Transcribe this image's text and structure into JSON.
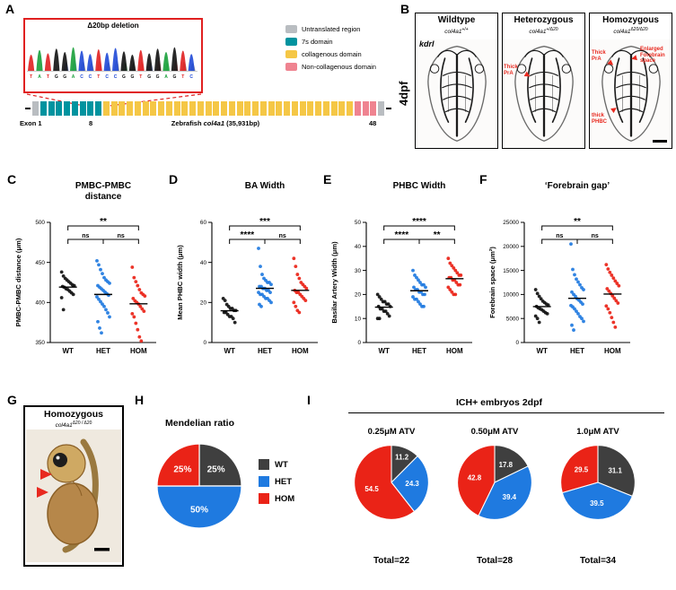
{
  "panel_labels": {
    "A": "A",
    "B": "B",
    "C": "C",
    "D": "D",
    "E": "E",
    "F": "F",
    "G": "G",
    "H": "H",
    "I": "I"
  },
  "icons": {
    "tri_right": "▶",
    "tri_left": "◀"
  },
  "panelA": {
    "deletion_label": "Δ20bp deletion",
    "sequence": "TATGGACCTCCGGTGGAGTC",
    "base_colors": {
      "A": "#18a03a",
      "C": "#1f49d7",
      "G": "#111111",
      "T": "#e02020"
    },
    "legend": [
      {
        "label": "Untranslated region",
        "color": "#b9bdc1"
      },
      {
        "label": "7s domain",
        "color": "#00939f"
      },
      {
        "label": "collagenous domain",
        "color": "#f5c746"
      },
      {
        "label": "Non-collagenous domain",
        "color": "#ef8390"
      }
    ],
    "exons": {
      "segments": [
        {
          "color": "#b9bdc1",
          "count": 1
        },
        {
          "color": "#00939f",
          "count": 8
        },
        {
          "color": "#f5c746",
          "count": 32
        },
        {
          "color": "#ef8390",
          "count": 3
        },
        {
          "color": "#b9bdc1",
          "count": 1
        }
      ],
      "label_exon1": "Exon 1",
      "label_8": "8",
      "label_48": "48",
      "caption_prefix": "Zebrafish ",
      "gene": "col4a1",
      "caption_suffix": " (35,931bp)"
    }
  },
  "panelB": {
    "dpf_label": "4dpf",
    "reporter": "kdrl",
    "panels": [
      {
        "title": "Wildtype",
        "gene": "col4a1",
        "sup": "+/+",
        "annotations": []
      },
      {
        "title": "Heterozygous",
        "gene": "col4a1",
        "sup": "+/Δ20",
        "annotations": [
          {
            "text": "Thick PrA"
          }
        ]
      },
      {
        "title": "Homozygous",
        "gene": "col4a1",
        "sup": "Δ20/Δ20",
        "annotations": [
          {
            "text": "Thick PrA"
          },
          {
            "text": "Enlarged Forebrain space"
          },
          {
            "text": "thick PHBC"
          }
        ]
      }
    ]
  },
  "panelG": {
    "title": "Homozygous",
    "gene": "col4a1",
    "sup": "Δ20 / Δ20"
  },
  "panelI": {
    "header": "ICH+ embryos 2dpf"
  },
  "chart_data": [
    {
      "id": "C",
      "type": "scatter",
      "title": "PMBC-PMBC distance",
      "title_lines": [
        "PMBC-PMBC",
        "distance"
      ],
      "ylabel": "PMBC-PMBC distance (μm)",
      "ylim": [
        350,
        500
      ],
      "yticks": [
        350,
        400,
        450,
        500
      ],
      "categories": [
        "WT",
        "HET",
        "HOM"
      ],
      "series": [
        {
          "name": "WT",
          "color": "#111111",
          "values": [
            438,
            433,
            430,
            428,
            426,
            424,
            422,
            421,
            420,
            419,
            417,
            416,
            414,
            412,
            410,
            406,
            391
          ]
        },
        {
          "name": "HET",
          "color": "#1f7ae0",
          "values": [
            452,
            447,
            441,
            436,
            431,
            428,
            426,
            424,
            421,
            419,
            417,
            415,
            413,
            411,
            409,
            407,
            404,
            401,
            398,
            395,
            391,
            387,
            382,
            376,
            368,
            362
          ]
        },
        {
          "name": "HOM",
          "color": "#ea2317",
          "values": [
            444,
            431,
            426,
            421,
            416,
            412,
            410,
            408,
            405,
            402,
            400,
            398,
            395,
            392,
            389,
            386,
            382,
            374,
            366,
            357,
            352
          ]
        }
      ],
      "significance": [
        {
          "a": 0,
          "b": 1,
          "label": "ns",
          "level": 0
        },
        {
          "a": 1,
          "b": 2,
          "label": "ns",
          "level": 0
        },
        {
          "a": 0,
          "b": 2,
          "label": "**",
          "level": 1
        }
      ]
    },
    {
      "id": "D",
      "type": "scatter",
      "title": "BA Width",
      "title_lines": [
        "BA Width"
      ],
      "ylabel": "Mean PHBC width (μm)",
      "ylim": [
        0,
        60
      ],
      "yticks": [
        0,
        20,
        40,
        60
      ],
      "categories": [
        "WT",
        "HET",
        "HOM"
      ],
      "series": [
        {
          "name": "WT",
          "color": "#111111",
          "values": [
            22,
            21,
            19,
            18,
            17,
            17,
            16,
            16,
            15,
            15,
            14,
            13,
            13,
            12,
            10
          ]
        },
        {
          "name": "HET",
          "color": "#1f7ae0",
          "values": [
            47,
            38,
            34,
            32,
            31,
            30,
            30,
            29,
            28,
            28,
            27,
            27,
            26,
            26,
            25,
            25,
            24,
            24,
            23,
            22,
            22,
            21,
            20,
            19,
            18
          ]
        },
        {
          "name": "HOM",
          "color": "#ea2317",
          "values": [
            42,
            38,
            34,
            32,
            30,
            29,
            28,
            27,
            26,
            25,
            25,
            24,
            23,
            22,
            21,
            20,
            18,
            16,
            15
          ]
        }
      ],
      "significance": [
        {
          "a": 0,
          "b": 1,
          "label": "****",
          "level": 0
        },
        {
          "a": 1,
          "b": 2,
          "label": "ns",
          "level": 0
        },
        {
          "a": 0,
          "b": 2,
          "label": "***",
          "level": 1
        }
      ]
    },
    {
      "id": "E",
      "type": "scatter",
      "title": "PHBC Width",
      "title_lines": [
        "PHBC Width"
      ],
      "ylabel": "Basilar Artery Width (μm)",
      "ylim": [
        0,
        50
      ],
      "yticks": [
        0,
        10,
        20,
        30,
        40,
        50
      ],
      "categories": [
        "WT",
        "HET",
        "HOM"
      ],
      "series": [
        {
          "name": "WT",
          "color": "#111111",
          "values": [
            20,
            19,
            18,
            17,
            17,
            16,
            16,
            15,
            15,
            14,
            14,
            13,
            13,
            12,
            11,
            10,
            10
          ]
        },
        {
          "name": "HET",
          "color": "#1f7ae0",
          "values": [
            30,
            28,
            27,
            26,
            25,
            24,
            24,
            23,
            23,
            22,
            22,
            21,
            21,
            20,
            20,
            19,
            18,
            18,
            17,
            16,
            15,
            15
          ]
        },
        {
          "name": "HOM",
          "color": "#ea2317",
          "values": [
            35,
            33,
            32,
            31,
            30,
            29,
            28,
            28,
            27,
            27,
            26,
            26,
            25,
            24,
            24,
            23,
            22,
            21,
            20,
            20
          ]
        }
      ],
      "significance": [
        {
          "a": 0,
          "b": 1,
          "label": "****",
          "level": 0
        },
        {
          "a": 1,
          "b": 2,
          "label": "**",
          "level": 0
        },
        {
          "a": 0,
          "b": 2,
          "label": "****",
          "level": 1
        }
      ]
    },
    {
      "id": "F",
      "type": "scatter",
      "title": "‘Forebrain gap’",
      "title_lines": [
        "‘Forebrain gap’"
      ],
      "ylabel": "Forebrain space (μm²)",
      "ylim": [
        0,
        25000
      ],
      "yticks": [
        0,
        5000,
        10000,
        15000,
        20000,
        25000
      ],
      "categories": [
        "WT",
        "HET",
        "HOM"
      ],
      "series": [
        {
          "name": "WT",
          "color": "#111111",
          "values": [
            11000,
            10200,
            9600,
            9100,
            8600,
            8300,
            8000,
            7800,
            7500,
            7200,
            7000,
            6800,
            6500,
            6200,
            6000,
            5500,
            5000,
            4200
          ]
        },
        {
          "name": "HET",
          "color": "#1f7ae0",
          "values": [
            20500,
            15200,
            14100,
            13200,
            12600,
            12000,
            11400,
            11000,
            10500,
            10000,
            9600,
            9100,
            8800,
            8400,
            8000,
            7700,
            7400,
            7000,
            6500,
            6000,
            5400,
            5000,
            4400,
            3600,
            2600
          ]
        },
        {
          "name": "HOM",
          "color": "#ea2317",
          "values": [
            16200,
            15300,
            14600,
            14000,
            13400,
            12800,
            12300,
            11800,
            11200,
            10700,
            10200,
            9700,
            9200,
            8700,
            8200,
            7600,
            7000,
            6200,
            5200,
            4200,
            3200
          ]
        }
      ],
      "significance": [
        {
          "a": 0,
          "b": 1,
          "label": "ns",
          "level": 0
        },
        {
          "a": 1,
          "b": 2,
          "label": "ns",
          "level": 0
        },
        {
          "a": 0,
          "b": 2,
          "label": "**",
          "level": 1
        }
      ]
    },
    {
      "id": "H",
      "type": "pie",
      "title": "Mendelian ratio",
      "label_size": 10,
      "slices": [
        {
          "name": "WT",
          "value": 25,
          "label": "25%",
          "color": "#3f3f3f"
        },
        {
          "name": "HET",
          "value": 50,
          "label": "50%",
          "color": "#1f7ae0"
        },
        {
          "name": "HOM",
          "value": 25,
          "label": "25%",
          "color": "#ea2317"
        }
      ]
    },
    {
      "id": "I-025",
      "type": "pie",
      "title": "0.25μM ATV",
      "total": "Total=22",
      "label_size": 9,
      "slices": [
        {
          "name": "WT",
          "value": 11.2,
          "label": "11.2",
          "color": "#3f3f3f"
        },
        {
          "name": "HET",
          "value": 24.3,
          "label": "24.3",
          "color": "#1f7ae0"
        },
        {
          "name": "HOM",
          "value": 54.5,
          "label": "54.5",
          "color": "#ea2317"
        }
      ]
    },
    {
      "id": "I-050",
      "type": "pie",
      "title": "0.50μM ATV",
      "total": "Total=28",
      "label_size": 9,
      "slices": [
        {
          "name": "WT",
          "value": 17.8,
          "label": "17.8",
          "color": "#3f3f3f"
        },
        {
          "name": "HET",
          "value": 39.4,
          "label": "39.4",
          "color": "#1f7ae0"
        },
        {
          "name": "HOM",
          "value": 42.8,
          "label": "42.8",
          "color": "#ea2317"
        }
      ]
    },
    {
      "id": "I-10",
      "type": "pie",
      "title": "1.0μM ATV",
      "total": "Total=34",
      "label_size": 9,
      "slices": [
        {
          "name": "WT",
          "value": 31.1,
          "label": "31.1",
          "color": "#3f3f3f"
        },
        {
          "name": "HET",
          "value": 39.5,
          "label": "39.5",
          "color": "#1f7ae0"
        },
        {
          "name": "HOM",
          "value": 29.5,
          "label": "29.5",
          "color": "#ea2317"
        }
      ]
    }
  ]
}
